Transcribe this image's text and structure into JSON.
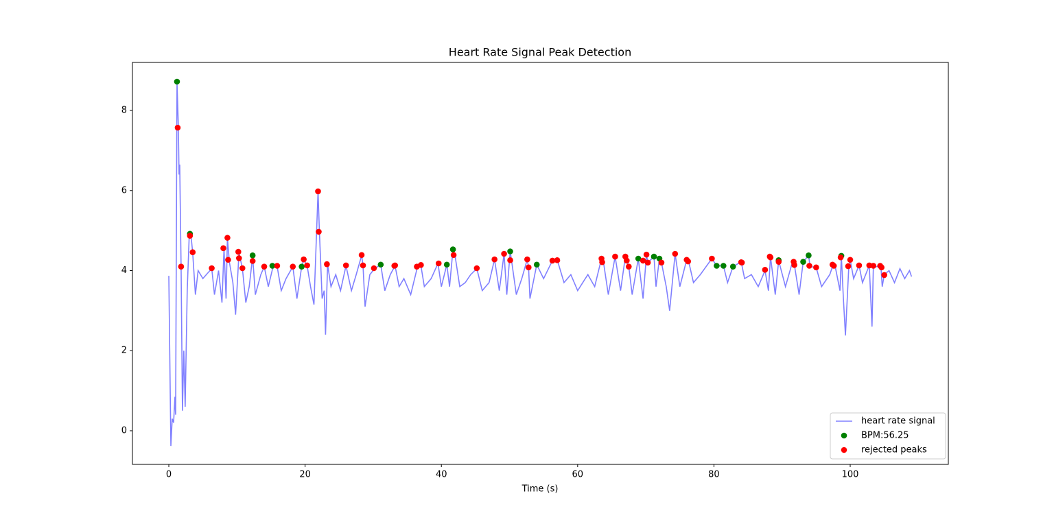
{
  "chart_data": {
    "type": "line",
    "title": "Heart Rate Signal Peak Detection",
    "x_label": "Time (s)",
    "xlim": [
      -5.34,
      114.4
    ],
    "ylim": [
      -0.84,
      9.2
    ],
    "xticks": [
      0,
      20,
      40,
      60,
      80,
      100
    ],
    "yticks": [
      0,
      2,
      4,
      6,
      8
    ],
    "legend": "lower right",
    "series": [
      {
        "name": "heart rate signal",
        "type": "line",
        "color": "#8080ff",
        "x": [
          0,
          0.3,
          0.5,
          0.7,
          0.9,
          1.0,
          1.2,
          1.4,
          1.5,
          1.6,
          1.8,
          2.0,
          2.2,
          2.4,
          2.7,
          3.0,
          3.3,
          3.5,
          3.9,
          4.3,
          5,
          5.5,
          6.3,
          6.7,
          7.3,
          7.8,
          8.1,
          8.4,
          8.6,
          8.9,
          9.4,
          9.8,
          10.3,
          10.8,
          11.3,
          11.8,
          12.3,
          12.7,
          13.5,
          14.0,
          14.6,
          15.3,
          15.9,
          16.5,
          17.2,
          18.2,
          18.8,
          19.5,
          19.8,
          20.3,
          20.8,
          21.3,
          21.9,
          22.1,
          22.5,
          22.8,
          23.0,
          23.3,
          23.8,
          24.5,
          25.2,
          26,
          26.8,
          27.5,
          28.3,
          28.5,
          28.8,
          29.5,
          30.2,
          31.1,
          31.7,
          32.5,
          33.2,
          33.8,
          34.5,
          35.5,
          36.5,
          37,
          37.5,
          38.5,
          39.5,
          40,
          40.8,
          41.2,
          41.7,
          42,
          42.7,
          43.5,
          44.3,
          45.2,
          46,
          47,
          47.8,
          48.5,
          49.2,
          49.6,
          50.1,
          50.3,
          51,
          51.8,
          52.6,
          52.8,
          53,
          54,
          55,
          56.3,
          57,
          58,
          59,
          60,
          61.5,
          62.5,
          63.5,
          63.8,
          64.5,
          65.5,
          66.3,
          67,
          67.2,
          67.5,
          68,
          68.9,
          69.6,
          70.1,
          70.3,
          71.2,
          71.5,
          72,
          72.3,
          73,
          73.5,
          74.3,
          75,
          76,
          76.3,
          77,
          78,
          79.7,
          80.4,
          81.4,
          82,
          82.8,
          84,
          84.5,
          85.5,
          86.5,
          87.5,
          88,
          88.3,
          89,
          89.5,
          90.5,
          91.5,
          91.8,
          92.5,
          93.1,
          93.9,
          94.1,
          95,
          95.8,
          97,
          97.5,
          97.8,
          98.5,
          98.7,
          99,
          99.3,
          99.8,
          100,
          100.5,
          101.3,
          101.8,
          102.8,
          103.2,
          103.4,
          103.9,
          104.5,
          104.7,
          105,
          105.7,
          106.5,
          107.3,
          108,
          108.7,
          109
        ],
        "values": [
          3.87,
          -0.38,
          0.3,
          0.2,
          0.85,
          0.4,
          8.7,
          7.6,
          6.4,
          6.65,
          4.1,
          0.5,
          2.0,
          0.6,
          3.5,
          4.9,
          4.8,
          4.45,
          3.4,
          4.0,
          3.8,
          3.9,
          4.05,
          3.4,
          4.0,
          3.2,
          4.55,
          3.3,
          4.8,
          4.2,
          3.7,
          2.9,
          4.45,
          4.05,
          3.2,
          3.6,
          4.35,
          3.4,
          3.9,
          4.1,
          3.6,
          4.1,
          4.1,
          3.5,
          3.8,
          4.1,
          3.3,
          4.1,
          4.28,
          4.12,
          3.6,
          3.15,
          5.98,
          4.97,
          3.3,
          3.5,
          2.4,
          4.15,
          3.6,
          3.9,
          3.5,
          4.12,
          3.5,
          3.9,
          4.38,
          4.12,
          3.1,
          3.9,
          4.05,
          4.15,
          3.5,
          3.9,
          4.12,
          3.6,
          3.8,
          3.4,
          4.1,
          4.12,
          3.6,
          3.8,
          4.18,
          3.6,
          4.15,
          3.6,
          4.52,
          4.38,
          3.6,
          3.7,
          3.9,
          4.05,
          3.5,
          3.7,
          4.28,
          3.5,
          4.42,
          3.4,
          4.48,
          4.25,
          3.4,
          3.8,
          4.28,
          4.07,
          3.3,
          4.15,
          3.8,
          4.25,
          4.27,
          3.7,
          3.9,
          3.5,
          3.9,
          3.6,
          4.3,
          4.2,
          3.4,
          4.35,
          3.5,
          4.35,
          4.25,
          4.1,
          3.4,
          4.3,
          3.3,
          4.4,
          4.2,
          4.35,
          3.6,
          4.3,
          4.2,
          3.6,
          3.0,
          4.42,
          3.6,
          4.27,
          4.22,
          3.7,
          3.9,
          4.3,
          4.12,
          4.12,
          3.7,
          4.1,
          4.22,
          3.8,
          3.9,
          3.6,
          4.0,
          3.5,
          4.35,
          3.4,
          4.25,
          3.6,
          4.2,
          4.15,
          3.4,
          4.22,
          4.38,
          4.1,
          4.08,
          3.6,
          3.9,
          4.15,
          4.1,
          3.5,
          4.37,
          3.3,
          2.38,
          4.12,
          4.27,
          3.8,
          4.13,
          3.7,
          4.13,
          2.6,
          4.12,
          4.1,
          4.12,
          3.6,
          3.9,
          4.0,
          3.7,
          4.05,
          3.8,
          4.0,
          3.85
        ]
      },
      {
        "name": "BPM:56.25",
        "type": "scatter",
        "color": "#008000",
        "x": [
          1.2,
          3.1,
          12.3,
          15.2,
          19.5,
          31.1,
          40.8,
          41.7,
          50.1,
          54,
          68.9,
          71.2,
          72,
          80.4,
          81.4,
          82.8,
          89.5,
          93.1,
          93.9,
          98.7
        ],
        "values": [
          8.72,
          4.92,
          4.38,
          4.12,
          4.1,
          4.15,
          4.15,
          4.53,
          4.48,
          4.15,
          4.3,
          4.35,
          4.3,
          4.12,
          4.12,
          4.1,
          4.26,
          4.22,
          4.38,
          4.37
        ]
      },
      {
        "name": "rejected peaks",
        "type": "scatter",
        "color": "#ff0000",
        "x": [
          1.3,
          1.8,
          3.1,
          3.5,
          6.3,
          8.0,
          8.6,
          8.7,
          10.2,
          10.3,
          10.8,
          12.3,
          14,
          15.9,
          18.2,
          19.8,
          20.3,
          21.9,
          22.0,
          23.2,
          26,
          28.3,
          28.5,
          30.1,
          33.1,
          33.2,
          36.4,
          37,
          39.6,
          41.8,
          45.2,
          47.8,
          49.2,
          50.1,
          52.6,
          52.8,
          56.3,
          57,
          63.5,
          63.6,
          65.5,
          67,
          67.2,
          67.5,
          69.6,
          70.1,
          70.3,
          72.3,
          74.3,
          76,
          76.2,
          79.7,
          84.0,
          84.1,
          87.5,
          88.2,
          88.3,
          89.5,
          91.7,
          91.8,
          94.0,
          95.0,
          97.4,
          97.6,
          98.6,
          99.7,
          100,
          101.3,
          102.8,
          103.4,
          104.4,
          104.6,
          105
        ],
        "values": [
          7.57,
          4.1,
          4.87,
          4.46,
          4.06,
          4.56,
          4.82,
          4.27,
          4.47,
          4.31,
          4.06,
          4.24,
          4.1,
          4.12,
          4.1,
          4.28,
          4.13,
          5.98,
          4.97,
          4.16,
          4.13,
          4.39,
          4.13,
          4.06,
          4.12,
          4.13,
          4.1,
          4.14,
          4.18,
          4.39,
          4.06,
          4.28,
          4.42,
          4.26,
          4.28,
          4.08,
          4.25,
          4.26,
          4.3,
          4.21,
          4.35,
          4.35,
          4.25,
          4.1,
          4.25,
          4.4,
          4.2,
          4.2,
          4.42,
          4.27,
          4.23,
          4.3,
          4.21,
          4.2,
          4.02,
          4.35,
          4.33,
          4.22,
          4.22,
          4.14,
          4.12,
          4.08,
          4.15,
          4.12,
          4.33,
          4.11,
          4.27,
          4.13,
          4.13,
          4.12,
          4.12,
          4.08,
          3.89
        ]
      }
    ]
  }
}
